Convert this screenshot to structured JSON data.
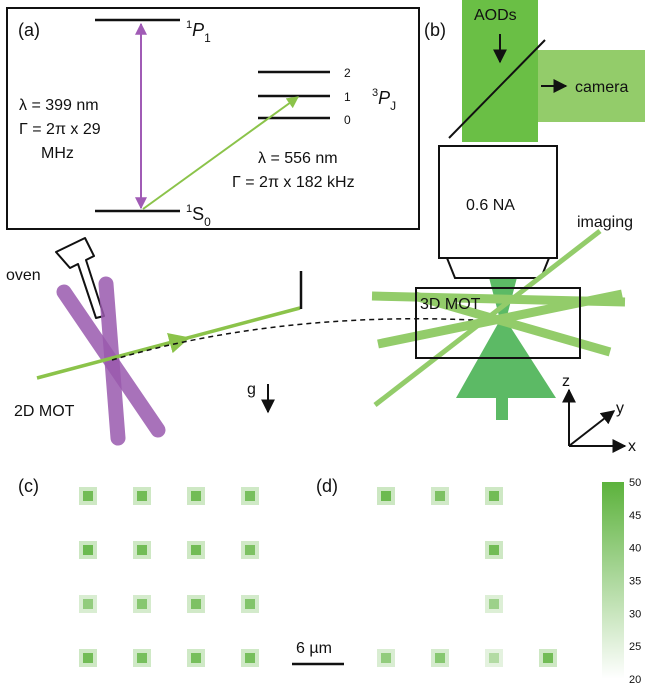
{
  "panel_labels": {
    "a": "(a)",
    "b": "(b)",
    "c": "(c)",
    "d": "(d)"
  },
  "level_diagram": {
    "upper_level": {
      "sup": "1",
      "letter": "P",
      "sub": "1"
    },
    "ground_level": {
      "sup": "1",
      "letter": "S",
      "sub": "0"
    },
    "triplet": {
      "sup": "3",
      "letter": "P",
      "sub": "J",
      "sublevels": [
        "2",
        "1",
        "0"
      ]
    },
    "blue_transition": {
      "lines": [
        "λ = 399 nm",
        "Γ = 2π x 29",
        "MHz"
      ]
    },
    "green_transition": {
      "lines": [
        "λ = 556 nm",
        "Γ = 2π x 182 kHz"
      ]
    },
    "colors": {
      "blue_arrow": "#a05bb5",
      "green_arrow": "#8bc34a"
    }
  },
  "apparatus": {
    "oven": "oven",
    "mot2d": "2D MOT",
    "gravity": "g",
    "mot3d": "3D MOT",
    "imaging": "imaging",
    "objective": "0.6 NA",
    "aods": "AODs",
    "camera": "camera",
    "axes": {
      "x": "x",
      "y": "y",
      "z": "z"
    },
    "colors": {
      "beam_green": "#6abf45",
      "beam_light": "#93cc6a",
      "mot2d_purple": "#9a5aae",
      "tweezer_green": "#3fae4a"
    }
  },
  "images": {
    "scalebar": "6 µm",
    "colorbar": {
      "ticks": [
        "50",
        "45",
        "40",
        "35",
        "30",
        "25",
        "20"
      ],
      "min": 20,
      "max": 50,
      "color_high": "#5cb23c",
      "color_low": "#ffffff"
    },
    "c_grid": {
      "cols": 4,
      "rows": 4
    },
    "d_grid": {
      "cols": 4,
      "rows": 4
    },
    "c_intensity": [
      [
        46,
        46,
        46,
        45
      ],
      [
        47,
        46,
        46,
        44
      ],
      [
        40,
        42,
        44,
        43
      ],
      [
        46,
        45,
        45,
        45
      ]
    ],
    "d_intensity": [
      [
        47,
        44,
        46,
        0
      ],
      [
        0,
        0,
        46,
        0
      ],
      [
        0,
        0,
        38,
        0
      ],
      [
        40,
        42,
        34,
        46
      ]
    ]
  }
}
